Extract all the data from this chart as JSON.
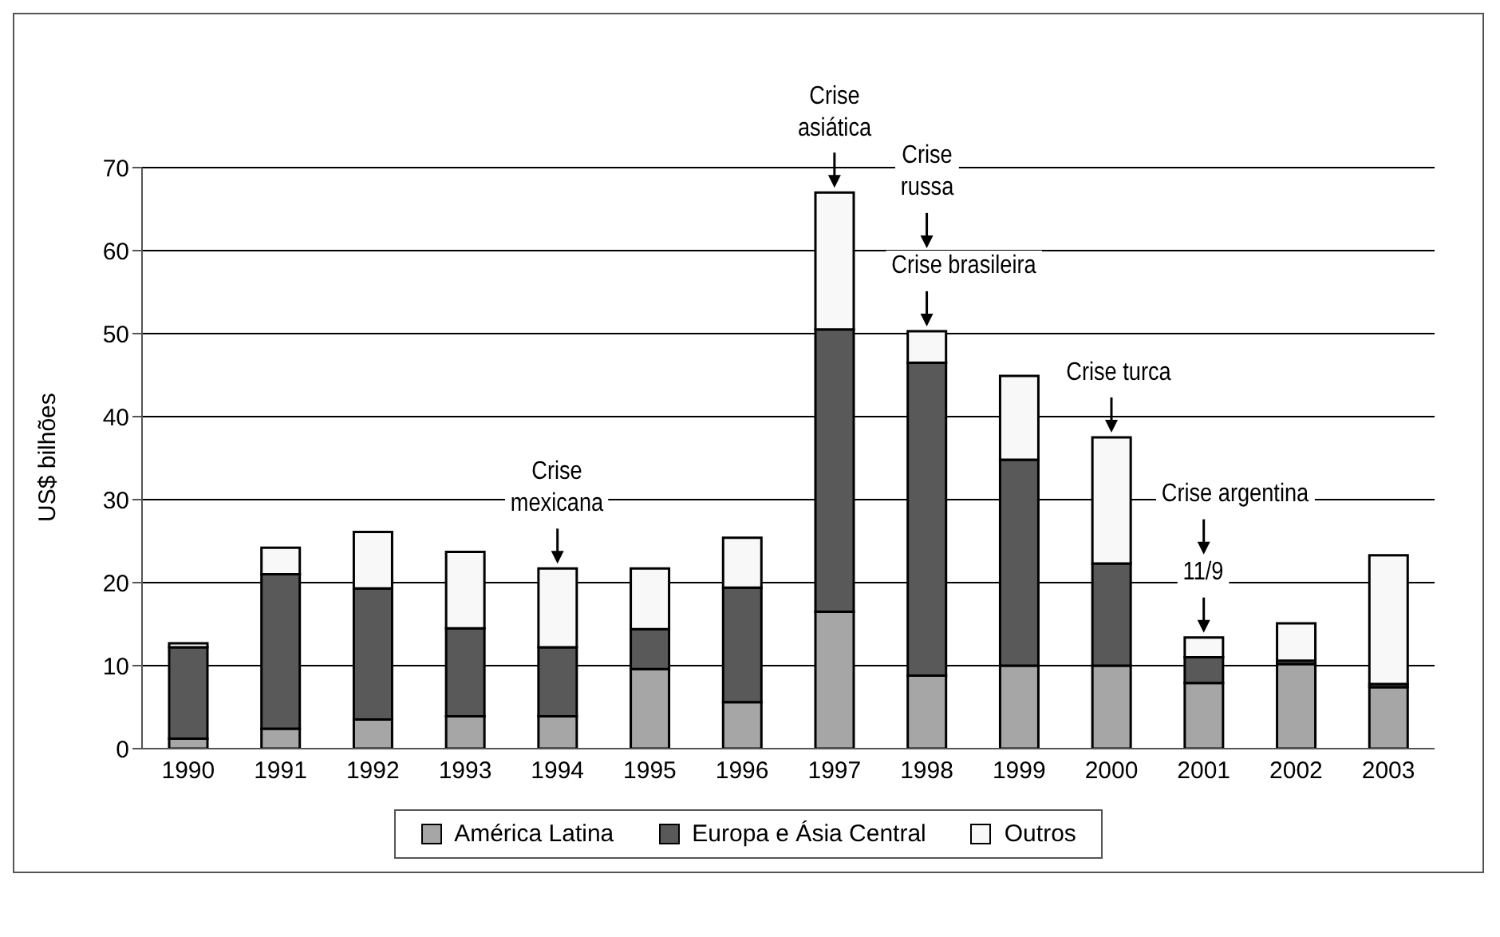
{
  "chart_data": {
    "type": "bar",
    "stacked": true,
    "ylabel": "US$ bilhões",
    "categories": [
      "1990",
      "1991",
      "1992",
      "1993",
      "1994",
      "1995",
      "1996",
      "1997",
      "1998",
      "1999",
      "2000",
      "2001",
      "2002",
      "2003"
    ],
    "series": [
      {
        "name": "América Latina",
        "color": "#a6a6a6",
        "values": [
          1.2,
          2.4,
          3.5,
          3.9,
          3.9,
          9.6,
          5.6,
          16.5,
          8.8,
          10.0,
          10.0,
          7.9,
          10.2,
          7.4
        ]
      },
      {
        "name": "Europa e Ásia Central",
        "color": "#595959",
        "values": [
          11.0,
          18.6,
          15.8,
          10.6,
          8.3,
          4.8,
          13.8,
          34.0,
          37.7,
          24.8,
          12.3,
          3.1,
          0.4,
          0.4
        ]
      },
      {
        "name": "Outros",
        "color": "#f8f8f8",
        "values": [
          0.5,
          3.2,
          6.8,
          9.2,
          9.5,
          7.3,
          6.0,
          16.5,
          3.8,
          10.1,
          15.2,
          2.4,
          4.5,
          15.5
        ]
      }
    ],
    "ylim": [
      0,
      70
    ],
    "yticks": [
      0,
      10,
      20,
      30,
      40,
      50,
      60,
      70
    ],
    "grid": "y",
    "legend": "bottom",
    "annotations": [
      {
        "text": "Crise\nmexicana",
        "x": "1994",
        "y": 21.7
      },
      {
        "text": "Crise\nasiática",
        "x": "1997",
        "y": 67
      },
      "Crise\nrussa",
      {
        "text": "Crise brasileira",
        "x": "1998",
        "y": 50.3
      },
      {
        "text": "Crise turca",
        "x": "2000",
        "y": 37.5
      },
      "Crise argentina",
      {
        "text": "11/9",
        "x": "2001",
        "y": 13.4
      }
    ]
  }
}
